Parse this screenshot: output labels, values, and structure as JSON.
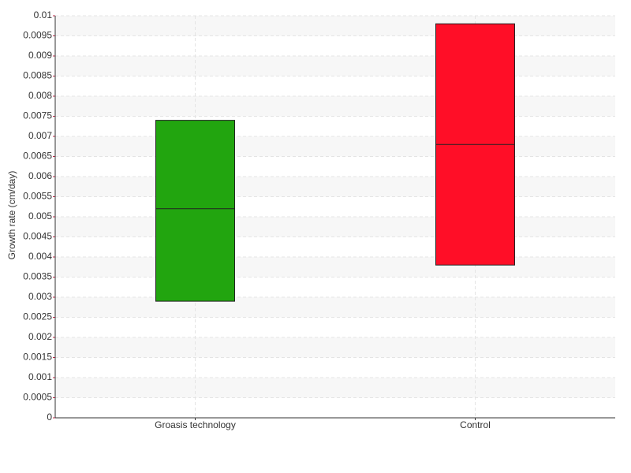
{
  "chart_data": {
    "type": "box",
    "y_label": "Growth rate (cm/day)",
    "categories": [
      "Groasis technology",
      "Control"
    ],
    "low": [
      0.0029,
      0.0038
    ],
    "median": [
      0.0052,
      0.0068
    ],
    "high": [
      0.0074,
      0.0098
    ],
    "colors": [
      "#22a50f",
      "#ff0e27"
    ],
    "ylim": [
      0,
      0.01
    ],
    "yticks": [
      0,
      0.0005,
      0.001,
      0.0015,
      0.002,
      0.0025,
      0.003,
      0.0035,
      0.004,
      0.0045,
      0.005,
      0.0055,
      0.006,
      0.0065,
      0.007,
      0.0075,
      0.008,
      0.0085,
      0.009,
      0.0095,
      0.01
    ],
    "grid": true
  }
}
